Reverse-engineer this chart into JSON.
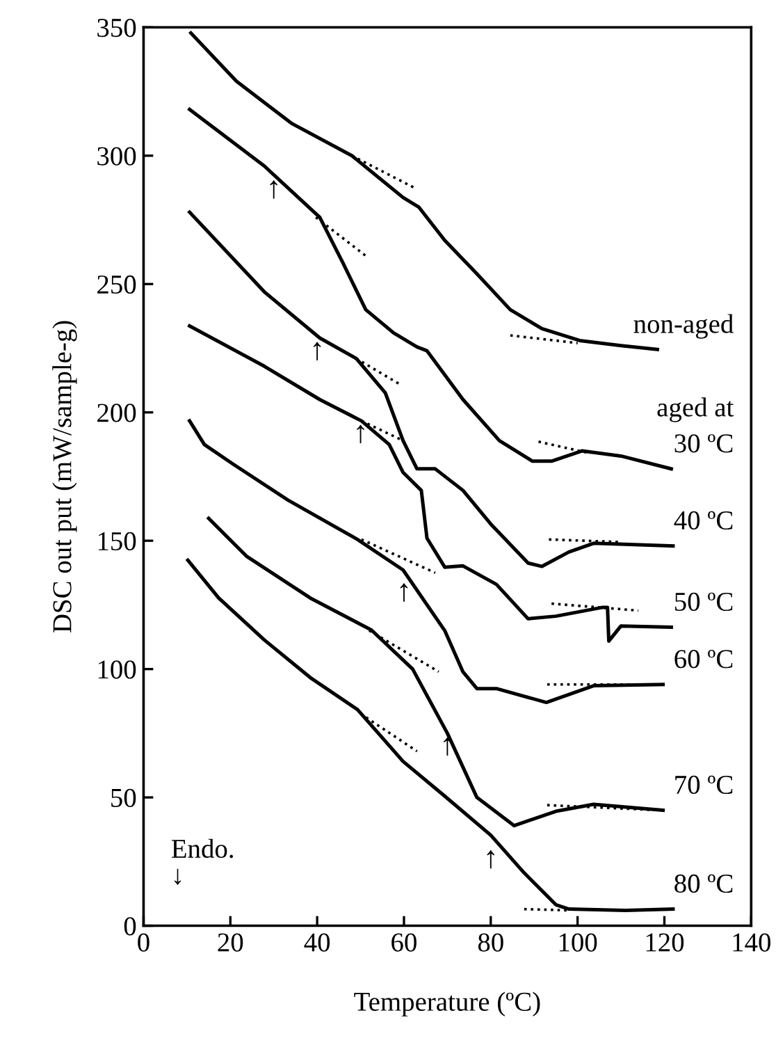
{
  "chart_data": {
    "type": "line",
    "xlabel": "Temperature (ºC)",
    "ylabel": "DSC out put (mW/sample-g)",
    "xlim": [
      0,
      140
    ],
    "ylim": [
      0,
      350
    ],
    "xticks": [
      0,
      20,
      40,
      60,
      80,
      100,
      120,
      140
    ],
    "yticks": [
      0,
      50,
      100,
      150,
      200,
      250,
      300,
      350
    ],
    "grid": false,
    "legend": false,
    "marker": "none",
    "line_style": "solid",
    "series": [
      {
        "name": "non-aged",
        "color": "#000000",
        "x": [
          10.9,
          21.4,
          34.2,
          48,
          59.8,
          63.4,
          69.4,
          76.8,
          84.5,
          91.8,
          100.5,
          110,
          118.4
        ],
        "values": [
          347.8,
          329,
          312.5,
          300,
          283.7,
          280,
          267,
          254,
          240,
          232.6,
          228,
          226,
          224.5
        ]
      },
      {
        "name": "30 ºC",
        "color": "#000000",
        "x": [
          10.6,
          27.8,
          40.6,
          46,
          51.2,
          57.6,
          63,
          65.3,
          73.6,
          82,
          89.6,
          94,
          101,
          110,
          121.6
        ],
        "values": [
          318,
          296,
          276,
          258,
          240,
          231,
          225.5,
          224,
          205,
          189,
          181,
          181,
          185,
          183,
          178
        ]
      },
      {
        "name": "40 ºC",
        "color": "#000000",
        "x": [
          10.6,
          27.8,
          40.6,
          49,
          55.7,
          59.8,
          63,
          67.2,
          73.6,
          80,
          88.6,
          91.8,
          98,
          103.7,
          122
        ],
        "values": [
          278,
          247,
          229,
          221,
          207.6,
          189,
          178,
          178,
          169.6,
          156.5,
          141.3,
          140,
          145.6,
          149,
          148
        ]
      },
      {
        "name": "50 ºC",
        "color": "#000000",
        "x": [
          10.6,
          27.8,
          40.6,
          50.2,
          56.6,
          59.8,
          64,
          65.3,
          69.4,
          73.6,
          81.3,
          88.6,
          95,
          105.6,
          106.9,
          107.2,
          110,
          121.6
        ],
        "values": [
          233.7,
          218,
          205,
          196.7,
          187.5,
          176.6,
          169.6,
          151,
          139.7,
          140.2,
          133,
          119.6,
          120.6,
          124,
          124,
          110.9,
          116.8,
          116.3
        ]
      },
      {
        "name": "60 ºC",
        "color": "#000000",
        "x": [
          10.6,
          14,
          20.5,
          33.3,
          49.3,
          59.8,
          69.4,
          73.6,
          76.8,
          81.3,
          92.8,
          103.7,
          119.7
        ],
        "values": [
          196.7,
          187.5,
          180,
          165.8,
          150.5,
          138.6,
          115,
          98.9,
          92.4,
          92.4,
          87,
          93.5,
          94
        ]
      },
      {
        "name": "70 ºC",
        "color": "#000000",
        "x": [
          15,
          23.7,
          38.4,
          52.5,
          62,
          70,
          76.8,
          85.4,
          95,
          103.7,
          119.7
        ],
        "values": [
          158.7,
          144,
          127.7,
          115.2,
          100,
          75,
          50,
          39,
          44.6,
          47.3,
          45
        ]
      },
      {
        "name": "80 ºC",
        "color": "#000000",
        "x": [
          10.2,
          17.3,
          27.8,
          38.4,
          49.3,
          59.8,
          69.4,
          80,
          87.7,
          95,
          98,
          111,
          122
        ],
        "values": [
          142.4,
          127.7,
          111.4,
          96.7,
          84.2,
          64,
          50.5,
          35.3,
          20.6,
          8.2,
          6.5,
          6,
          6.5
        ]
      },
      {
        "color": "#000000",
        "line_style": "dotted",
        "x": [
          48,
          62.4
        ],
        "values": [
          300,
          287.5
        ]
      },
      {
        "color": "#000000",
        "line_style": "dotted",
        "x": [
          84.5,
          100
        ],
        "values": [
          230,
          227
        ]
      },
      {
        "color": "#000000",
        "line_style": "dotted",
        "x": [
          39.7,
          51.2
        ],
        "values": [
          276,
          261
        ]
      },
      {
        "color": "#000000",
        "line_style": "dotted",
        "x": [
          91,
          103
        ],
        "values": [
          188.6,
          184
        ]
      },
      {
        "color": "#000000",
        "line_style": "dotted",
        "x": [
          49,
          59
        ],
        "values": [
          221,
          211
        ]
      },
      {
        "color": "#000000",
        "line_style": "dotted",
        "x": [
          93.4,
          110
        ],
        "values": [
          150.5,
          149.5
        ]
      },
      {
        "color": "#000000",
        "line_style": "dotted",
        "x": [
          50.2,
          59.8
        ],
        "values": [
          196.7,
          189
        ]
      },
      {
        "color": "#000000",
        "line_style": "dotted",
        "x": [
          94,
          114
        ],
        "values": [
          125.5,
          122.8
        ]
      },
      {
        "color": "#000000",
        "line_style": "dotted",
        "x": [
          50.2,
          67.2
        ],
        "values": [
          150.5,
          137.5
        ]
      },
      {
        "color": "#000000",
        "line_style": "dotted",
        "x": [
          93,
          119.7
        ],
        "values": [
          94,
          94
        ]
      },
      {
        "color": "#000000",
        "line_style": "dotted",
        "x": [
          52,
          68
        ],
        "values": [
          115,
          99
        ]
      },
      {
        "color": "#000000",
        "line_style": "dotted",
        "x": [
          93,
          119
        ],
        "values": [
          47,
          45
        ]
      },
      {
        "color": "#000000",
        "line_style": "dotted",
        "x": [
          50,
          63
        ],
        "values": [
          82.6,
          68
        ]
      },
      {
        "color": "#000000",
        "line_style": "dotted",
        "x": [
          87.7,
          98
        ],
        "values": [
          6.5,
          6
        ]
      }
    ],
    "annotations": [
      "aged at",
      "Endo.\n↓",
      {
        "text": "↑",
        "x": 30,
        "y": 292
      },
      {
        "text": "↑",
        "x": 40,
        "y": 229
      },
      {
        "text": "↑",
        "x": 50,
        "y": 196.7
      },
      {
        "text": "↑",
        "x": 60,
        "y": 135
      },
      {
        "text": "↑",
        "x": 70,
        "y": 75
      },
      {
        "text": "↑",
        "x": 80,
        "y": 31
      }
    ]
  }
}
